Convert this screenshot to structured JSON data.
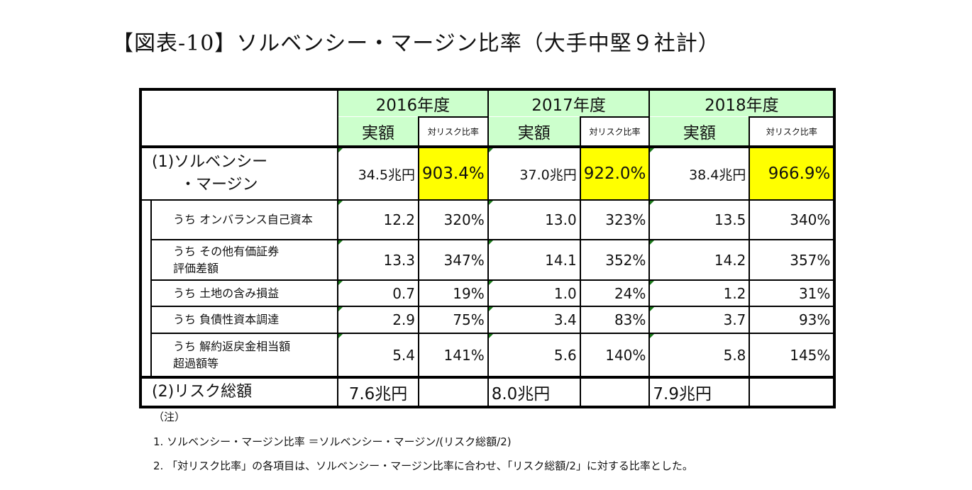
{
  "title": "【図表-10】ソルベンシー・マージン比率（大手中堅９社計）",
  "header": {
    "years": [
      "2016年度",
      "2017年度",
      "2018年度"
    ],
    "amount_label": "実額",
    "ratio_label": "対リスク比率"
  },
  "margin_row": {
    "label_line1": "(1)ソルベンシー",
    "label_line2": "・マージン",
    "values": [
      {
        "amount": "34.5兆円",
        "ratio": "903.4%"
      },
      {
        "amount": "37.0兆円",
        "ratio": "922.0%"
      },
      {
        "amount": "38.4兆円",
        "ratio": "966.9%"
      }
    ]
  },
  "sub_rows": [
    {
      "label_line1": "うち オンバランス自己資本",
      "label_line2": "",
      "values": [
        [
          "12.2",
          "320%"
        ],
        [
          "13.0",
          "323%"
        ],
        [
          "13.5",
          "340%"
        ]
      ]
    },
    {
      "label_line1": "うち その他有価証券",
      "label_line2": "評価差額",
      "values": [
        [
          "13.3",
          "347%"
        ],
        [
          "14.1",
          "352%"
        ],
        [
          "14.2",
          "357%"
        ]
      ]
    },
    {
      "label_line1": "うち 土地の含み損益",
      "label_line2": "",
      "values": [
        [
          "0.7",
          "19%"
        ],
        [
          "1.0",
          "24%"
        ],
        [
          "1.2",
          "31%"
        ]
      ]
    },
    {
      "label_line1": "うち 負債性資本調達",
      "label_line2": "",
      "values": [
        [
          "2.9",
          "75%"
        ],
        [
          "3.4",
          "83%"
        ],
        [
          "3.7",
          "93%"
        ]
      ]
    },
    {
      "label_line1": "うち 解約返戻金相当額",
      "label_line2": "超過額等",
      "values": [
        [
          "5.4",
          "141%"
        ],
        [
          "5.6",
          "140%"
        ],
        [
          "5.8",
          "145%"
        ]
      ]
    }
  ],
  "risk_row": {
    "label": "(2)リスク総額",
    "values": [
      "7.6兆円",
      "8.0兆円",
      "7.9兆円"
    ]
  },
  "notes": {
    "heading": "（注）",
    "items": [
      "1. ソルベンシー・マージン比率 ＝ソルベンシー・マージン/(リスク総額/2)",
      "2. 「対リスク比率」の各項目は、ソルベンシー・マージン比率に合わせ、「リスク総額/2」に対する比率とした。"
    ]
  },
  "colors": {
    "header_green": "#ccffcc",
    "highlight_yellow": "#ffff00"
  }
}
